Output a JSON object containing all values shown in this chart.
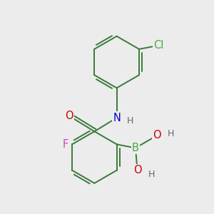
{
  "bg_color": "#ececec",
  "bond_color": "#3a7a3a",
  "atom_colors": {
    "O": "#cc0000",
    "N": "#0000cc",
    "F": "#cc44cc",
    "Cl": "#44aa44",
    "B": "#44aa44",
    "H": "#666666",
    "C": "#3a7a3a"
  },
  "font_size": 10.5,
  "small_font_size": 9.0,
  "lw": 1.4,
  "ring_r": 0.72,
  "xlim": [
    -1.6,
    3.2
  ],
  "ylim": [
    -3.1,
    2.8
  ]
}
